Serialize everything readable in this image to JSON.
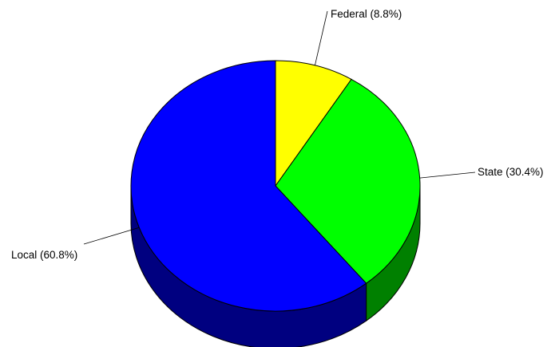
{
  "chart_data": {
    "type": "pie",
    "title": "",
    "three_d": true,
    "categories": [
      "Federal",
      "State",
      "Local"
    ],
    "values": [
      8.8,
      30.4,
      60.8
    ],
    "unit": "%",
    "labels": [
      "Federal (8.8%)",
      "State (30.4%)",
      "Local (60.8%)"
    ],
    "colors": {
      "Federal": "#ffff00",
      "State": "#00ff00",
      "Local": "#0000ff"
    },
    "side_colors": {
      "Federal": "#808000",
      "State": "#008000",
      "Local": "#000080"
    },
    "start_angle": "12 o'clock",
    "direction": "clockwise",
    "legend": "none"
  }
}
